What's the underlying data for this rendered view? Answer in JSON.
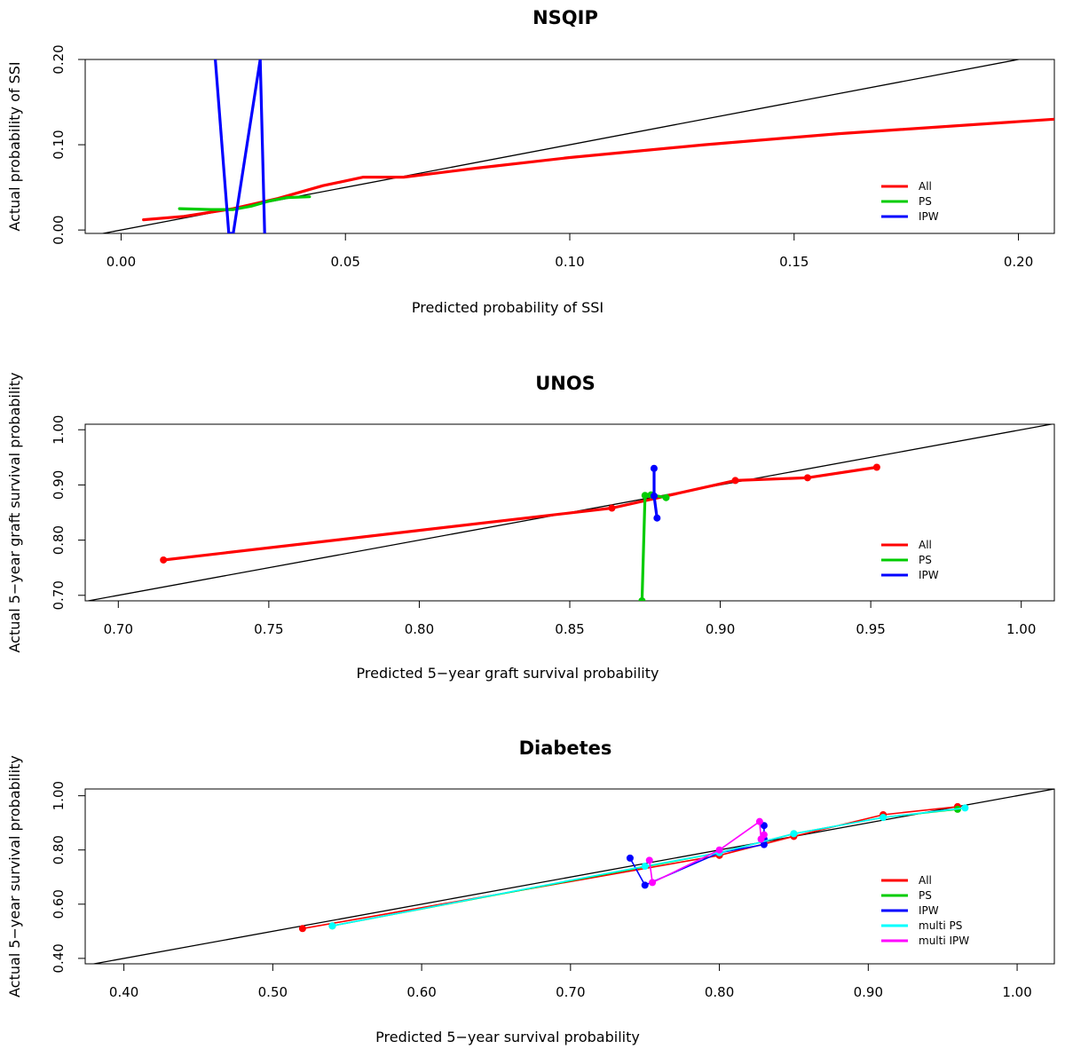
{
  "colors": {
    "All": "#ff0000",
    "PS": "#00cc00",
    "IPW": "#0000ff",
    "multi PS": "#00ffff",
    "multi IPW": "#ff00ff",
    "reference": "#000000"
  },
  "chart_data": [
    {
      "type": "line",
      "title": "NSQIP",
      "xlabel": "Predicted probability of SSI",
      "ylabel": "Actual probability of SSI",
      "xlim": [
        -0.008,
        0.208
      ],
      "ylim": [
        -0.004,
        0.2
      ],
      "xticks": [
        "0.00",
        "0.05",
        "0.10",
        "0.15",
        "0.20"
      ],
      "yticks": [
        "0.00",
        "0.10",
        "0.20"
      ],
      "reference_line": "y = x",
      "legend_position": "bottom-right",
      "legend": [
        "All",
        "PS",
        "IPW"
      ],
      "markers": false,
      "series": [
        {
          "name": "All",
          "x": [
            0.005,
            0.014,
            0.025,
            0.035,
            0.045,
            0.054,
            0.063,
            0.08,
            0.1,
            0.13,
            0.16,
            0.208
          ],
          "y": [
            0.012,
            0.016,
            0.025,
            0.037,
            0.052,
            0.062,
            0.062,
            0.073,
            0.085,
            0.1,
            0.113,
            0.13
          ]
        },
        {
          "name": "PS",
          "x": [
            0.013,
            0.02,
            0.025,
            0.029,
            0.033,
            0.037,
            0.042
          ],
          "y": [
            0.025,
            0.024,
            0.024,
            0.028,
            0.034,
            0.038,
            0.039
          ]
        },
        {
          "name": "IPW",
          "x": [
            0.021,
            0.024,
            0.025,
            0.031,
            0.032
          ],
          "y": [
            0.2,
            -0.004,
            -0.004,
            0.2,
            -0.004
          ]
        }
      ]
    },
    {
      "type": "line",
      "title": "UNOS",
      "xlabel": "Predicted 5−year graft survival probability",
      "ylabel": "Actual 5−year graft survival probability",
      "xlim": [
        0.689,
        1.011
      ],
      "ylim": [
        0.69,
        1.01
      ],
      "xticks": [
        "0.70",
        "0.75",
        "0.80",
        "0.85",
        "0.90",
        "0.95",
        "1.00"
      ],
      "yticks": [
        "0.70",
        "0.80",
        "0.90",
        "1.00"
      ],
      "reference_line": "y = x",
      "legend_position": "bottom-right",
      "legend": [
        "All",
        "PS",
        "IPW"
      ],
      "markers": true,
      "series": [
        {
          "name": "All",
          "x": [
            0.715,
            0.864,
            0.905,
            0.929,
            0.952
          ],
          "y": [
            0.764,
            0.858,
            0.908,
            0.913,
            0.932
          ]
        },
        {
          "name": "PS",
          "x": [
            0.874,
            0.875,
            0.877,
            0.882
          ],
          "y": [
            0.69,
            0.881,
            0.882,
            0.877
          ]
        },
        {
          "name": "IPW",
          "x": [
            0.878,
            0.878,
            0.879
          ],
          "y": [
            0.93,
            0.88,
            0.84
          ]
        }
      ]
    },
    {
      "type": "line",
      "title": "Diabetes",
      "xlabel": "Predicted 5−year survival probability",
      "ylabel": "Actual 5−year survival probability",
      "xlim": [
        0.374,
        1.025
      ],
      "ylim": [
        0.38,
        1.025
      ],
      "xticks": [
        "0.40",
        "0.50",
        "0.60",
        "0.70",
        "0.80",
        "0.90",
        "1.00"
      ],
      "yticks": [
        "0.40",
        "0.60",
        "0.80",
        "1.00"
      ],
      "reference_line": "y = x",
      "legend_position": "bottom-right",
      "legend": [
        "All",
        "PS",
        "IPW",
        "multi PS",
        "multi IPW"
      ],
      "markers": true,
      "series": [
        {
          "name": "All",
          "x": [
            0.52,
            0.8,
            0.85,
            0.91,
            0.96
          ],
          "y": [
            0.51,
            0.78,
            0.85,
            0.93,
            0.96
          ]
        },
        {
          "name": "PS",
          "x": [
            0.54,
            0.8,
            0.85,
            0.91,
            0.96
          ],
          "y": [
            0.52,
            0.79,
            0.86,
            0.92,
            0.95
          ]
        },
        {
          "name": "IPW",
          "x": [
            0.74,
            0.75,
            0.8,
            0.83,
            0.83,
            0.83
          ],
          "y": [
            0.77,
            0.67,
            0.79,
            0.82,
            0.89,
            0.84
          ]
        },
        {
          "name": "multi PS",
          "x": [
            0.54,
            0.75,
            0.8,
            0.85,
            0.91,
            0.965
          ],
          "y": [
            0.52,
            0.74,
            0.79,
            0.86,
            0.92,
            0.955
          ]
        },
        {
          "name": "multi IPW",
          "x": [
            0.753,
            0.755,
            0.8,
            0.827,
            0.828,
            0.83
          ],
          "y": [
            0.762,
            0.68,
            0.8,
            0.905,
            0.84,
            0.856
          ]
        }
      ]
    }
  ]
}
